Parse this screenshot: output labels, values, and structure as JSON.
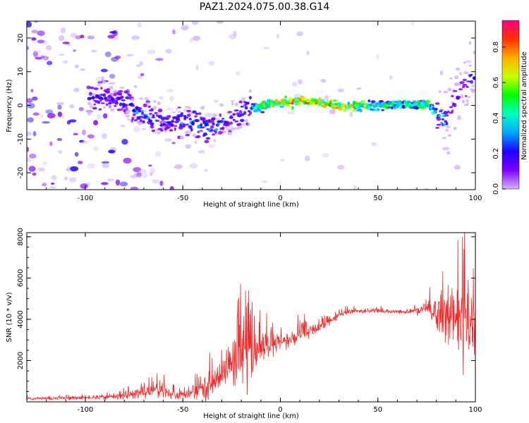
{
  "title": "PAZ1.2024.075.00.38.G14",
  "chart_data": [
    {
      "type": "heatmap",
      "xlabel": "Height of straight line (km)",
      "ylabel": "Frequency (Hz)",
      "xlim": [
        -130,
        100
      ],
      "ylim": [
        -25,
        25
      ],
      "xticks": [
        -100,
        -50,
        0,
        50,
        100
      ],
      "yticks": [
        -20,
        -10,
        0,
        10,
        20
      ],
      "colorbar": {
        "label": "Normalized spectral amplitude",
        "range": [
          0,
          0.95
        ],
        "ticks": [
          "0.0",
          "0.2",
          "0.4",
          "0.6",
          "0.8"
        ],
        "colormap": [
          "#ffffff",
          "#d7b4ff",
          "#8000ff",
          "#1e00ff",
          "#00a6ff",
          "#00ffc4",
          "#00ff00",
          "#c8ff00",
          "#ffb000",
          "#ff3000",
          "#ff007f"
        ]
      },
      "ridge": [
        {
          "x": -95,
          "freq": 2,
          "amp": 0.3
        },
        {
          "x": -80,
          "freq": 1,
          "amp": 0.35
        },
        {
          "x": -70,
          "freq": -3,
          "amp": 0.4
        },
        {
          "x": -60,
          "freq": -5,
          "amp": 0.35
        },
        {
          "x": -45,
          "freq": -5,
          "amp": 0.4
        },
        {
          "x": -35,
          "freq": -7,
          "amp": 0.4
        },
        {
          "x": -25,
          "freq": -4,
          "amp": 0.3
        },
        {
          "x": -15,
          "freq": -1,
          "amp": 0.45
        },
        {
          "x": -5,
          "freq": 0.5,
          "amp": 0.75
        },
        {
          "x": 10,
          "freq": 1.5,
          "amp": 0.85
        },
        {
          "x": 30,
          "freq": 0,
          "amp": 0.85
        },
        {
          "x": 50,
          "freq": 0,
          "amp": 0.55
        },
        {
          "x": 75,
          "freq": 0.5,
          "amp": 0.6
        },
        {
          "x": 85,
          "freq": -5,
          "amp": 0.4
        },
        {
          "x": 92,
          "freq": 4,
          "amp": 0.3
        },
        {
          "x": 98,
          "freq": 8,
          "amp": 0.3
        }
      ]
    },
    {
      "type": "line",
      "xlabel": "Height of straight line (km)",
      "ylabel": "SNR (10 * v/v)",
      "xlim": [
        -130,
        100
      ],
      "ylim": [
        0,
        8200
      ],
      "xticks": [
        -100,
        -50,
        0,
        50,
        100
      ],
      "yticks": [
        2000,
        4000,
        6000,
        8000
      ],
      "color": "#ee2a2a",
      "series": [
        {
          "x": [
            -130,
            -110,
            -90,
            -75,
            -65,
            -55,
            -45,
            -35,
            -28,
            -22,
            -18,
            -14,
            -10,
            -5,
            0,
            5,
            10,
            15,
            20,
            25,
            30,
            35,
            40,
            50,
            60,
            70,
            75,
            80,
            85,
            90,
            95,
            100
          ],
          "y": [
            150,
            180,
            220,
            350,
            650,
            300,
            400,
            900,
            1600,
            2200,
            2600,
            2300,
            2600,
            2700,
            2900,
            3000,
            3200,
            3400,
            3600,
            3900,
            4200,
            4350,
            4400,
            4400,
            4350,
            4400,
            4500,
            4300,
            4200,
            4000,
            3800,
            3600
          ],
          "noise": [
            60,
            80,
            100,
            250,
            500,
            250,
            300,
            700,
            900,
            1400,
            1800,
            1200,
            700,
            600,
            450,
            400,
            400,
            350,
            250,
            200,
            150,
            120,
            100,
            100,
            100,
            130,
            400,
            900,
            1100,
            1300,
            1800,
            2000
          ]
        }
      ]
    }
  ]
}
